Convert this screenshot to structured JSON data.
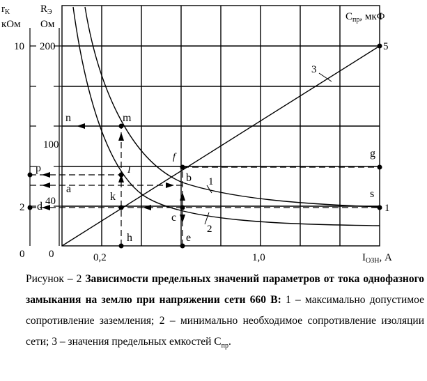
{
  "figure": {
    "left_axis_r_k": {
      "label": "r",
      "sub": "K",
      "unit": "кОм",
      "ticks": [
        "10",
        "2",
        "0"
      ]
    },
    "left_axis_r_e": {
      "label": "R",
      "sub": "Э",
      "unit": "Ом",
      "ticks": [
        "200",
        "100",
        "40",
        "0"
      ]
    },
    "right_axis": {
      "label": "C",
      "sub": "пр",
      "unit": ", мкФ",
      "ticks": [
        "5",
        "1"
      ]
    },
    "x_axis": {
      "label": "I",
      "sub": "ОЗН",
      "unit": ", А",
      "ticks": [
        "0,2",
        "1,0"
      ]
    },
    "point_labels": {
      "n": "n",
      "m": "m",
      "p": "p",
      "a": "a",
      "k": "k",
      "d": "d",
      "h": "h",
      "b": "b",
      "c": "c",
      "e": "e",
      "g": "g",
      "s": "s",
      "f": "f",
      "I": "I"
    },
    "curve_labels": {
      "c1": "1",
      "c2": "2",
      "c3": "3"
    }
  },
  "caption": {
    "prefix": "Рисунок – 2 ",
    "title": "Зависимости предельных значений параметров от тока однофазного замыкания на землю при напряжении сети 660 В:",
    "body": " 1 – максимально допустимое сопротивление заземления; 2 – минимально необходимое сопротивление изоляции сети; 3 – значения предельных емкостей С",
    "sub": "пр",
    "end": "."
  }
}
